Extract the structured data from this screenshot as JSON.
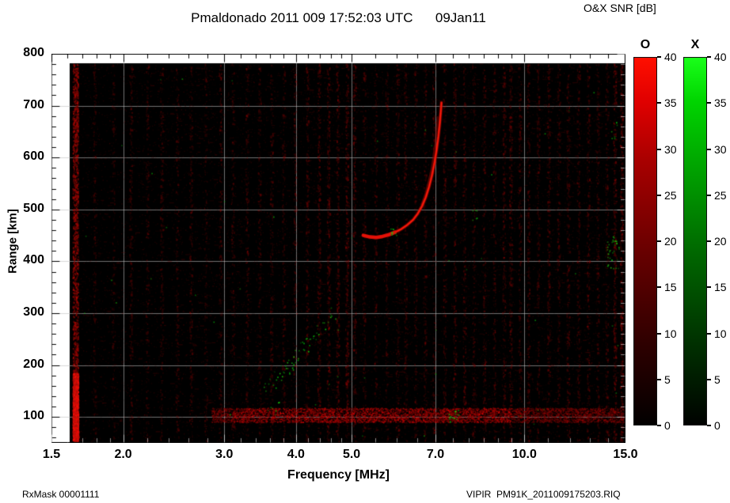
{
  "header": {
    "title": "Pmaldonado 2011 009 17:52:03 UTC      09Jan11"
  },
  "footer": {
    "rxmask": "RxMask 00001111",
    "filename": "VIPIR  PM91K_2011009175203.RIQ"
  },
  "colorbars": {
    "title": "O&X SNR [dB]",
    "min": 0,
    "max": 40,
    "ticks": [
      40,
      35,
      30,
      25,
      20,
      15,
      10,
      5,
      0
    ],
    "o": {
      "label": "O",
      "top_color": "#ff0f00",
      "stops": [
        "#020000 0%",
        "#2e0000 22%",
        "#6a0000 48%",
        "#a80000 72%",
        "#e00000 88%",
        "#ff0f00 100%"
      ]
    },
    "x": {
      "label": "X",
      "top_color": "#19ff19",
      "stops": [
        "#000200 0%",
        "#003000 22%",
        "#006a00 48%",
        "#00a800 72%",
        "#00d400 88%",
        "#19ff19 100%"
      ]
    }
  },
  "chart_data": {
    "type": "heatmap",
    "title": "Pmaldonado 2011 009 17:52:03 UTC      09Jan11",
    "xlabel": "Frequency [MHz]",
    "ylabel": "Range [km]",
    "xscale": "log",
    "xlim": [
      1.5,
      15.0
    ],
    "ylim": [
      50,
      800
    ],
    "xticks": [
      1.5,
      2.0,
      3.0,
      4.0,
      5.0,
      7.0,
      10.0,
      15.0
    ],
    "xtick_labels": [
      "1.5",
      "2.0",
      "3.0",
      "4.0",
      "5.0",
      "7.0",
      "10.0",
      "15.0"
    ],
    "xticks_minor": [
      1.6,
      1.7,
      1.8,
      1.9,
      2.2,
      2.4,
      2.6,
      2.8,
      3.2,
      3.4,
      3.6,
      3.8,
      4.2,
      4.4,
      4.6,
      4.8,
      5.5,
      6.0,
      6.5,
      7.5,
      8.0,
      8.5,
      9.0,
      9.5,
      11.0,
      12.0,
      13.0,
      14.0
    ],
    "yticks": [
      100,
      200,
      300,
      400,
      500,
      600,
      700,
      800
    ],
    "yticks_minor_step": 20,
    "grid": true,
    "background_color": "#000000",
    "colorbar_label": "O&X SNR [dB]",
    "features": {
      "echo_trace": {
        "description": "bright O-mode F-layer echo trace rising to cusp near critical frequency",
        "color": "#ff1a0a",
        "points": [
          [
            5.24,
            450
          ],
          [
            5.38,
            447
          ],
          [
            5.52,
            446
          ],
          [
            5.66,
            448
          ],
          [
            5.8,
            451
          ],
          [
            5.95,
            456
          ],
          [
            6.1,
            462
          ],
          [
            6.25,
            470
          ],
          [
            6.4,
            480
          ],
          [
            6.52,
            492
          ],
          [
            6.63,
            506
          ],
          [
            6.73,
            523
          ],
          [
            6.82,
            543
          ],
          [
            6.9,
            565
          ],
          [
            6.97,
            589
          ],
          [
            7.03,
            614
          ],
          [
            7.08,
            640
          ],
          [
            7.12,
            665
          ],
          [
            7.15,
            688
          ],
          [
            7.17,
            706
          ]
        ]
      },
      "echo_trace_secondary": {
        "description": "fainter parallel echo branch",
        "color": "#8f0a04",
        "points": [
          [
            6.62,
            510
          ],
          [
            6.72,
            530
          ],
          [
            6.8,
            552
          ],
          [
            6.88,
            576
          ],
          [
            6.94,
            602
          ],
          [
            6.99,
            628
          ],
          [
            7.03,
            654
          ],
          [
            7.06,
            678
          ]
        ]
      },
      "ground_band": {
        "description": "low-range red noise band",
        "freq_mhz": [
          2.85,
          15.0
        ],
        "range_km": [
          90,
          118
        ]
      },
      "interference_stripe": {
        "description": "strong vertical RFI line at left edge",
        "freq_mhz": 1.65,
        "bright_range_km": [
          55,
          185
        ]
      },
      "noise_stripes": [
        [
          1.78,
          0.25
        ],
        [
          1.92,
          0.2
        ],
        [
          2.06,
          0.3
        ],
        [
          2.2,
          0.25
        ],
        [
          2.33,
          0.3
        ],
        [
          2.48,
          0.25
        ],
        [
          2.62,
          0.3
        ],
        [
          2.78,
          0.22
        ],
        [
          2.95,
          0.3
        ],
        [
          3.1,
          0.25
        ],
        [
          3.28,
          0.3
        ],
        [
          3.45,
          0.28
        ],
        [
          3.62,
          0.3
        ],
        [
          3.8,
          0.28
        ],
        [
          3.98,
          0.3
        ],
        [
          4.18,
          0.35
        ],
        [
          4.38,
          0.4
        ],
        [
          4.55,
          0.45
        ],
        [
          4.72,
          0.42
        ],
        [
          4.9,
          0.48
        ],
        [
          5.05,
          0.4
        ],
        [
          5.25,
          0.3
        ],
        [
          5.5,
          0.28
        ],
        [
          5.75,
          0.3
        ],
        [
          6.0,
          0.3
        ],
        [
          6.2,
          0.32
        ],
        [
          6.45,
          0.3
        ],
        [
          6.7,
          0.3
        ],
        [
          6.95,
          0.28
        ],
        [
          7.25,
          0.35
        ],
        [
          7.55,
          0.4
        ],
        [
          7.85,
          0.35
        ],
        [
          8.15,
          0.3
        ],
        [
          8.5,
          0.35
        ],
        [
          8.85,
          0.3
        ],
        [
          9.2,
          0.38
        ],
        [
          9.45,
          0.42
        ],
        [
          9.8,
          0.3
        ],
        [
          10.15,
          0.35
        ],
        [
          10.55,
          0.3
        ],
        [
          11.0,
          0.35
        ],
        [
          11.45,
          0.3
        ],
        [
          11.9,
          0.35
        ],
        [
          12.4,
          0.3
        ],
        [
          12.9,
          0.35
        ],
        [
          13.4,
          0.3
        ],
        [
          13.9,
          0.32
        ],
        [
          14.35,
          0.5
        ],
        [
          14.75,
          0.55
        ]
      ],
      "green_clusters": [
        {
          "mode": "diag",
          "f": [
            3.5,
            4.62
          ],
          "r": [
            150,
            300
          ],
          "n": 60,
          "bright": 0.8
        },
        {
          "mode": "blob",
          "f": [
            5.84,
            5.98
          ],
          "r": [
            450,
            470
          ],
          "n": 10,
          "bright": 1.0
        },
        {
          "mode": "blob",
          "f": [
            7.35,
            7.8
          ],
          "r": [
            90,
            115
          ],
          "n": 16,
          "bright": 0.9
        },
        {
          "mode": "blob",
          "f": [
            8.05,
            8.25
          ],
          "r": [
            478,
            500
          ],
          "n": 6,
          "bright": 0.7
        },
        {
          "mode": "blob",
          "f": [
            13.9,
            14.6
          ],
          "r": [
            385,
            450
          ],
          "n": 30,
          "bright": 0.9
        },
        {
          "mode": "blob",
          "f": [
            14.15,
            14.5
          ],
          "r": [
            635,
            675
          ],
          "n": 8,
          "bright": 0.7
        },
        {
          "mode": "blob",
          "f": [
            3.55,
            3.75
          ],
          "r": [
            95,
            130
          ],
          "n": 8,
          "bright": 0.6
        },
        {
          "mode": "blob",
          "f": [
            1.7,
            14.9
          ],
          "r": [
            60,
            780
          ],
          "n": 50,
          "bright": 0.4
        }
      ]
    }
  }
}
